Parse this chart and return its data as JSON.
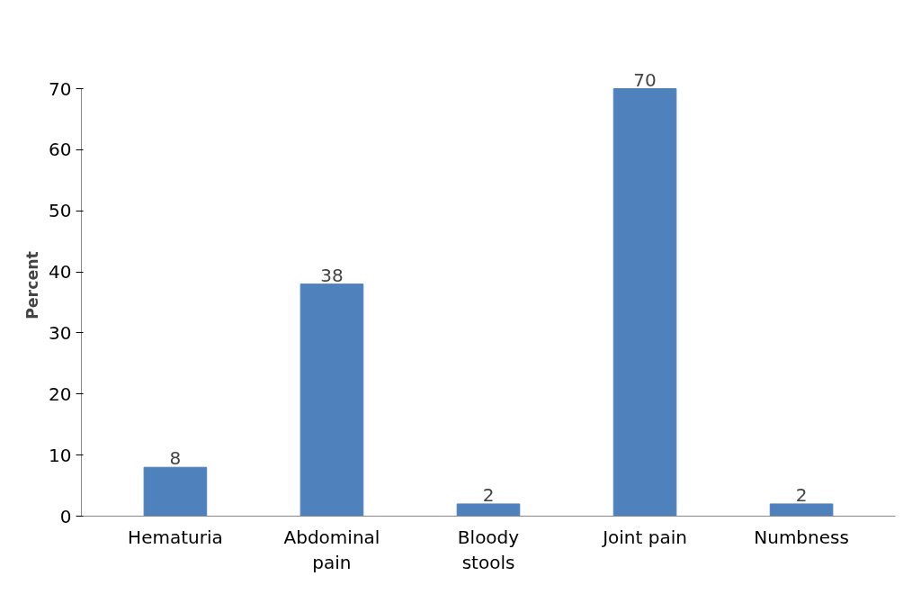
{
  "chart_data": {
    "type": "bar",
    "categories": [
      "Hematuria",
      "Abdominal pain",
      "Bloody stools",
      "Joint pain",
      "Numbness"
    ],
    "values": [
      8,
      38,
      2,
      70,
      2
    ],
    "color": "#4f81bd",
    "ylabel": "Percent",
    "ylim": [
      0,
      70
    ],
    "yticks": [
      0,
      10,
      20,
      30,
      40,
      50,
      60,
      70
    ],
    "data_labels": true,
    "grid": false
  }
}
